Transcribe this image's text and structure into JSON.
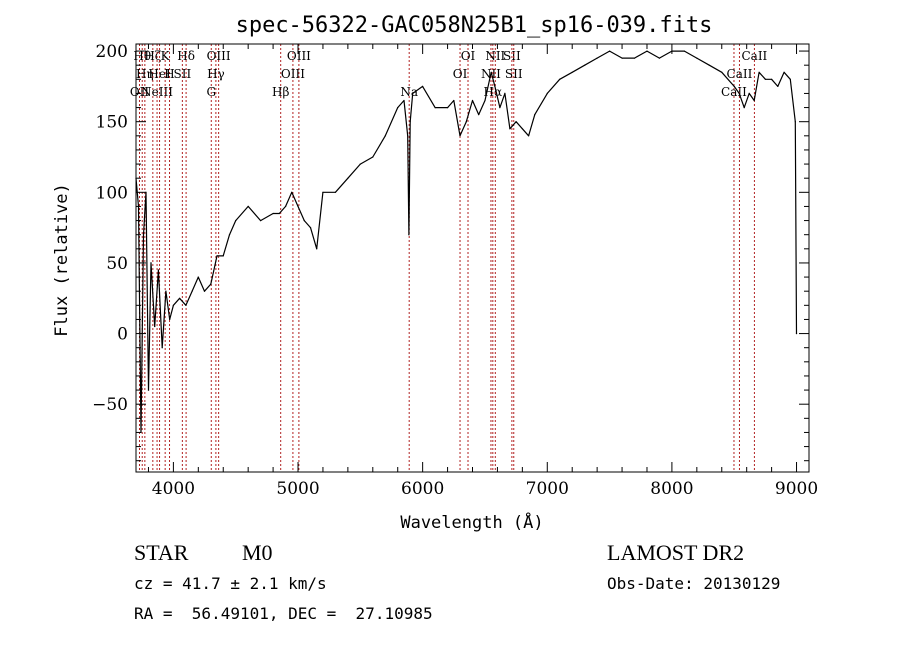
{
  "chart_data": {
    "type": "line",
    "title": "spec-56322-GAC058N25B1_sp16-039.fits",
    "xlabel": "Wavelength (Å)",
    "ylabel": "Flux (relative)",
    "xlim": [
      3700,
      9100
    ],
    "ylim": [
      -98,
      205
    ],
    "x_ticks": [
      4000,
      5000,
      6000,
      7000,
      8000,
      9000
    ],
    "y_ticks": [
      -50,
      0,
      50,
      100,
      150,
      200
    ],
    "grid": false,
    "series": [
      {
        "x": [
          3700,
          3720,
          3740,
          3760,
          3780,
          3800,
          3820,
          3850,
          3880,
          3910,
          3940,
          3970,
          4000,
          4050,
          4100,
          4150,
          4200,
          4250,
          4300,
          4350,
          4400,
          4450,
          4500,
          4600,
          4700,
          4800,
          4850,
          4900,
          4950,
          5000,
          5050,
          5100,
          5150,
          5200,
          5300,
          5400,
          5500,
          5600,
          5700,
          5800,
          5850,
          5880,
          5890,
          5900,
          5920,
          6000,
          6100,
          6200,
          6250,
          6300,
          6350,
          6400,
          6450,
          6500,
          6550,
          6580,
          6620,
          6660,
          6700,
          6750,
          6800,
          6850,
          6900,
          7000,
          7100,
          7200,
          7300,
          7400,
          7500,
          7600,
          7700,
          7800,
          7900,
          8000,
          8100,
          8200,
          8300,
          8400,
          8500,
          8540,
          8580,
          8620,
          8660,
          8700,
          8750,
          8800,
          8850,
          8900,
          8950,
          8990,
          9000
        ],
        "y": [
          110,
          90,
          -70,
          70,
          100,
          -40,
          50,
          5,
          45,
          -10,
          30,
          10,
          20,
          25,
          20,
          30,
          40,
          30,
          35,
          55,
          55,
          70,
          80,
          90,
          80,
          85,
          85,
          90,
          100,
          90,
          80,
          75,
          60,
          100,
          100,
          110,
          120,
          125,
          140,
          160,
          165,
          140,
          70,
          150,
          170,
          175,
          160,
          160,
          165,
          140,
          150,
          165,
          155,
          165,
          185,
          175,
          160,
          170,
          145,
          150,
          145,
          140,
          155,
          170,
          180,
          185,
          190,
          195,
          200,
          195,
          195,
          200,
          195,
          200,
          200,
          195,
          190,
          185,
          175,
          170,
          160,
          170,
          165,
          185,
          180,
          180,
          175,
          185,
          180,
          150,
          0
        ]
      }
    ],
    "lines": [
      {
        "wave": 3728,
        "row": 2,
        "label": "OII"
      },
      {
        "wave": 3750,
        "row": 0,
        "label": "Hθ"
      },
      {
        "wave": 3771,
        "row": 1,
        "label": "Hη"
      },
      {
        "wave": 3835,
        "row": 0,
        "label": "Hζ"
      },
      {
        "wave": 3869,
        "row": 2,
        "label": "NeIII"
      },
      {
        "wave": 3889,
        "row": 1,
        "label": "HeI"
      },
      {
        "wave": 3934,
        "row": 0,
        "label": "K"
      },
      {
        "wave": 3969,
        "row": 1,
        "label": "H"
      },
      {
        "wave": 4072,
        "row": 1,
        "label": "SII"
      },
      {
        "wave": 4102,
        "row": 0,
        "label": "Hδ"
      },
      {
        "wave": 4304,
        "row": 2,
        "label": "G"
      },
      {
        "wave": 4341,
        "row": 1,
        "label": "Hγ"
      },
      {
        "wave": 4363,
        "row": 0,
        "label": "OIII"
      },
      {
        "wave": 4861,
        "row": 2,
        "label": "Hβ"
      },
      {
        "wave": 4959,
        "row": 1,
        "label": "OIII"
      },
      {
        "wave": 5007,
        "row": 0,
        "label": "OIII"
      },
      {
        "wave": 5892,
        "row": 2,
        "label": "Na"
      },
      {
        "wave": 6300,
        "row": 1,
        "label": "OI"
      },
      {
        "wave": 6364,
        "row": 0,
        "label": "OI"
      },
      {
        "wave": 6548,
        "row": 1,
        "label": "NII"
      },
      {
        "wave": 6563,
        "row": 2,
        "label": "Hα"
      },
      {
        "wave": 6583,
        "row": 0,
        "label": "NII"
      },
      {
        "wave": 6716,
        "row": 0,
        "label": "SII"
      },
      {
        "wave": 6731,
        "row": 1,
        "label": "SII"
      },
      {
        "wave": 8498,
        "row": 2,
        "label": "CaII"
      },
      {
        "wave": 8542,
        "row": 1,
        "label": "CaII"
      },
      {
        "wave": 8662,
        "row": 0,
        "label": "CaII"
      }
    ]
  },
  "footer": {
    "object_class": "STAR",
    "subclass": "M0",
    "survey": "LAMOST DR2",
    "redshift": "cz = 41.7 ± 2.1 km/s",
    "obs_date": "Obs-Date: 20130129",
    "coords": "RA =  56.49101, DEC =  27.10985"
  }
}
